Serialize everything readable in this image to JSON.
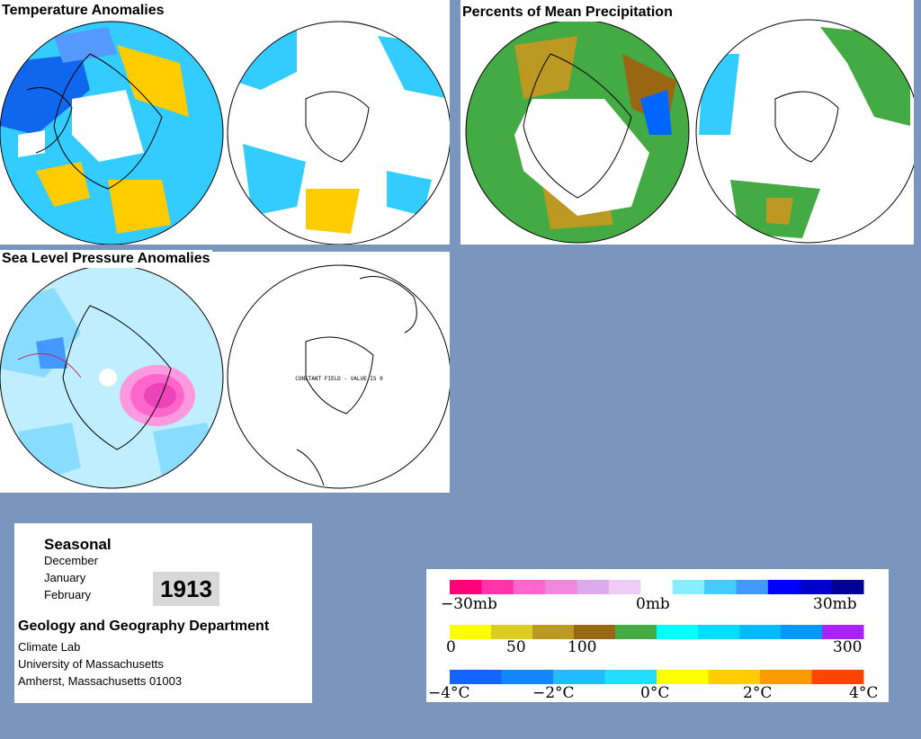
{
  "panels": {
    "temperature": {
      "title": "Temperature Anomalies"
    },
    "precipitation": {
      "title": "Percents of Mean Precipitation"
    },
    "pressure": {
      "title": "Sea Level Pressure Anomalies",
      "south_note": "CONSTANT FIELD - VALUE IS 0"
    }
  },
  "info": {
    "season": "Seasonal",
    "months": [
      "December",
      "January",
      "February"
    ],
    "year": "1913",
    "department": "Geology and Geography Department",
    "lab": "Climate Lab",
    "university": "University of Massachusetts",
    "address": "Amherst, Massachusetts 01003"
  },
  "legends": {
    "pressure": {
      "labels": [
        "−30mb",
        "0mb",
        "30mb"
      ],
      "colors": [
        "#ff0077",
        "#ff33aa",
        "#ff66cc",
        "#ee88dd",
        "#ddaaee",
        "#eeccf5",
        "#ffffff",
        "#88eeff",
        "#44ccff",
        "#4499ff",
        "#0000ff",
        "#0000cc",
        "#000099"
      ]
    },
    "precipitation": {
      "labels": [
        "0",
        "50",
        "100",
        "300"
      ],
      "colors": [
        "#ffff00",
        "#ddcc22",
        "#bb9922",
        "#996611",
        "#44aa44",
        "#00ffff",
        "#00ddff",
        "#00bbff",
        "#0099ff",
        "#aa22ff"
      ]
    },
    "temperature": {
      "labels": [
        "−4°C",
        "−2°C",
        "0°C",
        "2°C",
        "4°C"
      ],
      "colors": [
        "#1166ff",
        "#1188ff",
        "#22bbff",
        "#22ddff",
        "#ffff00",
        "#ffcc00",
        "#ff9900",
        "#ff4400"
      ]
    }
  }
}
